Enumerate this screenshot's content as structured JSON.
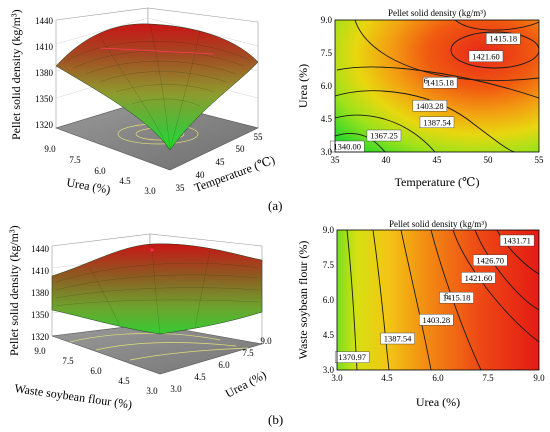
{
  "figure": {
    "panel_labels": [
      "(a)",
      "(b)"
    ]
  },
  "chart_data": [
    {
      "type": "surface",
      "panel": "a",
      "zlabel": "Pellet solid density (kg/m³)",
      "xlabel": "Temperature (℃)",
      "ylabel": "Urea (%)",
      "z_ticks": [
        "1320",
        "1350",
        "1380",
        "1410",
        "1440"
      ],
      "x_ticks": [
        "35",
        "40",
        "45",
        "50",
        "55"
      ],
      "y_ticks": [
        "3.0",
        "4.5",
        "6.0",
        "7.5",
        "9.0"
      ],
      "colors": {
        "high": "#cc1111",
        "mid": "#b9ad3c",
        "low": "#2fd12f",
        "floor": "#8a8a8a"
      }
    },
    {
      "type": "contour",
      "panel": "a",
      "title": "Pellet solid density (kg/m³)",
      "xlabel": "Temperature (℃)",
      "ylabel": "Urea (%)",
      "x_ticks": [
        "35",
        "40",
        "45",
        "50",
        "55"
      ],
      "y_ticks": [
        "3.0",
        "4.5",
        "6.0",
        "7.5",
        "9.0"
      ],
      "xlim": [
        35,
        55
      ],
      "ylim": [
        3.0,
        9.0
      ],
      "contour_labels": [
        {
          "text": "1340.00",
          "x": 36.2,
          "y": 3.25
        },
        {
          "text": "1367.25",
          "x": 39.8,
          "y": 3.75
        },
        {
          "text": "1387.54",
          "x": 45.0,
          "y": 4.35
        },
        {
          "text": "1403.28",
          "x": 44.3,
          "y": 5.1
        },
        {
          "text": "1415.18",
          "x": 45.3,
          "y": 6.15
        },
        {
          "text": "1421.60",
          "x": 49.8,
          "y": 7.35
        },
        {
          "text": "1415.18",
          "x": 51.5,
          "y": 8.15
        }
      ],
      "center_marker": {
        "text": "6",
        "x": 43.9,
        "y": 6.25
      }
    },
    {
      "type": "surface",
      "panel": "b",
      "zlabel": "Pellet solid density (kg/m³)",
      "xlabel": "Waste soybean flour (%)",
      "ylabel": "Urea (%)",
      "z_ticks": [
        "1320",
        "1350",
        "1380",
        "1410",
        "1440"
      ],
      "x_ticks": [
        "9.0",
        "7.5",
        "6.0",
        "4.5",
        "3.0"
      ],
      "y_ticks": [
        "3.0",
        "4.5",
        "6.0",
        "7.5",
        "9.0"
      ],
      "colors": {
        "high": "#cc1111",
        "mid": "#b9ad3c",
        "low": "#2fd12f",
        "floor": "#8a8a8a"
      }
    },
    {
      "type": "contour",
      "panel": "b",
      "title": "Pellet solid density (kg/m³)",
      "xlabel": "Urea (%)",
      "ylabel": "Waste soybean flour (%)",
      "x_ticks": [
        "3.0",
        "4.5",
        "6.0",
        "7.5",
        "9.0"
      ],
      "y_ticks": [
        "3.0",
        "4.5",
        "6.0",
        "7.5",
        "9.0"
      ],
      "xlim": [
        3.0,
        9.0
      ],
      "ylim": [
        3.0,
        9.0
      ],
      "contour_labels": [
        {
          "text": "1370.97",
          "x": 3.45,
          "y": 3.55
        },
        {
          "text": "1387.54",
          "x": 4.8,
          "y": 4.35
        },
        {
          "text": "1403.28",
          "x": 5.95,
          "y": 5.15
        },
        {
          "text": "1415.18",
          "x": 6.55,
          "y": 6.1
        },
        {
          "text": "1421.60",
          "x": 7.2,
          "y": 6.95
        },
        {
          "text": "1426.70",
          "x": 7.55,
          "y": 7.7
        },
        {
          "text": "1431.71",
          "x": 8.35,
          "y": 8.55
        }
      ],
      "center_marker": {
        "text": "6",
        "x": 6.25,
        "y": 6.2
      }
    }
  ]
}
